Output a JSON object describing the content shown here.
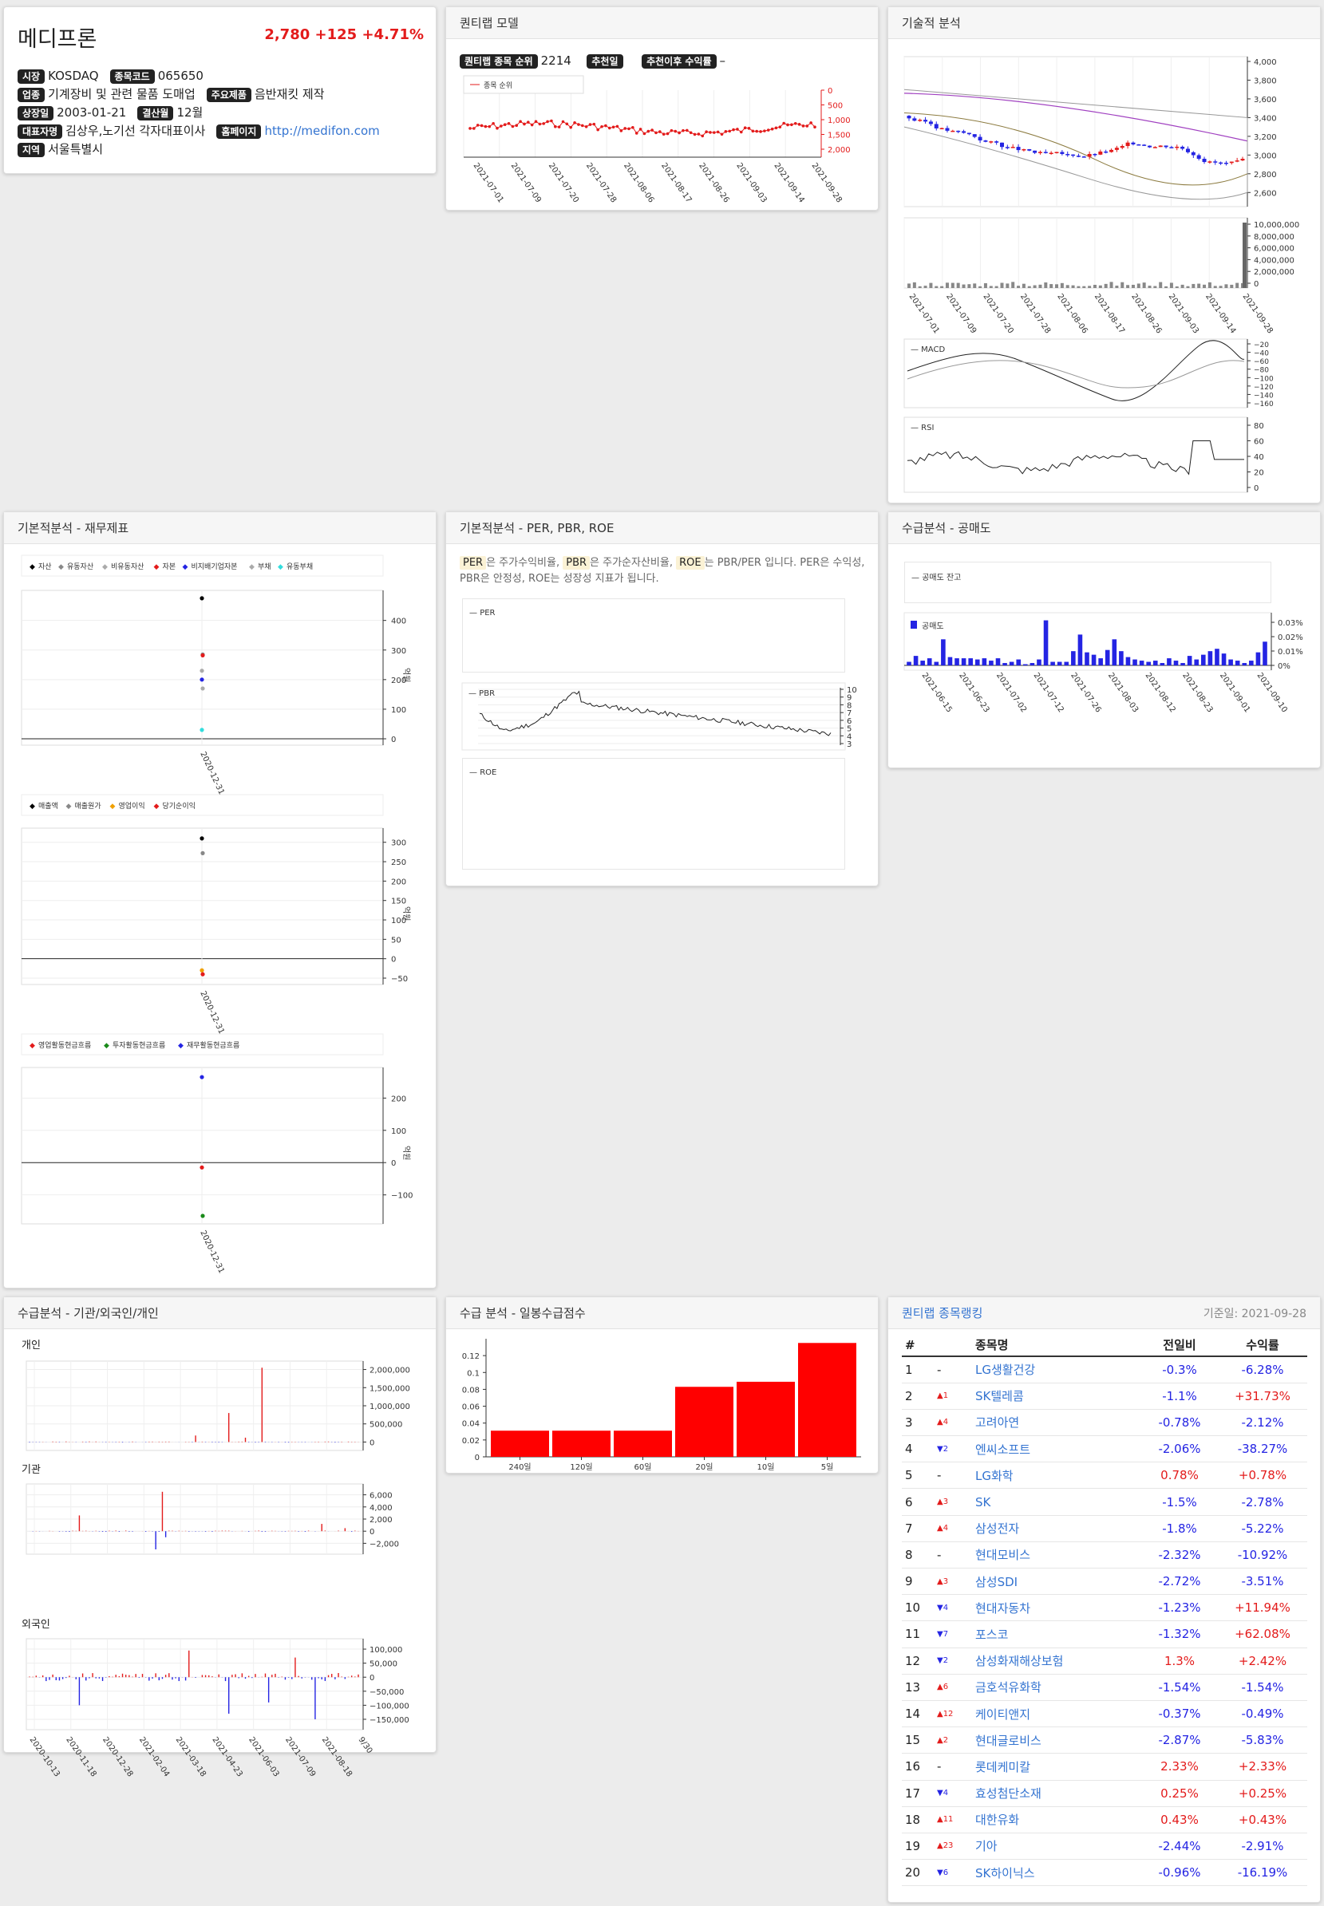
{
  "stock": {
    "name": "메디프론",
    "price": "2,780",
    "change": "+125",
    "pct": "+4.71%",
    "market_label": "시장",
    "market": "KOSDAQ",
    "code_label": "종목코드",
    "code": "065650",
    "industry_label": "업종",
    "industry": "기계장비 및 관련 물품 도매업",
    "product_label": "주요제품",
    "product": "음반재킷 제작",
    "listed_label": "상장일",
    "listed": "2003-01-21",
    "fiscal_label": "결산월",
    "fiscal": "12월",
    "ceo_label": "대표자명",
    "ceo": "김상우,노기선 각자대표이사",
    "homepage_label": "홈페이지",
    "homepage": "http://medifon.com",
    "region_label": "지역",
    "region": "서울특별시"
  },
  "quant": {
    "title": "퀀티랩 모델",
    "rank_label": "퀀티랩 종목 순위",
    "rank": "2214",
    "rec_date_label": "추천일",
    "rec_return_label": "추천이후 수익률",
    "rec_return": "–",
    "legend": "종목 순위",
    "y_ticks": [
      "0",
      "500",
      "1,000",
      "1,500",
      "2,000"
    ],
    "x_ticks": [
      "2021-07-01",
      "2021-07-09",
      "2021-07-20",
      "2021-07-28",
      "2021-08-06",
      "2021-08-17",
      "2021-08-26",
      "2021-09-03",
      "2021-09-14",
      "2021-09-28"
    ]
  },
  "tech": {
    "title": "기술적 분석",
    "price_ticks": [
      "4,000",
      "3,800",
      "3,600",
      "3,400",
      "3,200",
      "3,000",
      "2,800",
      "2,600"
    ],
    "vol_ticks": [
      "10,000,000",
      "8,000,000",
      "6,000,000",
      "4,000,000",
      "2,000,000",
      "0"
    ],
    "x_ticks": [
      "2021-07-01",
      "2021-07-09",
      "2021-07-20",
      "2021-07-28",
      "2021-08-06",
      "2021-08-17",
      "2021-08-26",
      "2021-09-03",
      "2021-09-14",
      "2021-09-28"
    ],
    "macd_label": "MACD",
    "macd_ticks": [
      "−20",
      "−40",
      "−60",
      "−80",
      "−100",
      "−120",
      "−140",
      "−160"
    ],
    "rsi_label": "RSI",
    "rsi_ticks": [
      "80",
      "60",
      "40",
      "20",
      "0"
    ]
  },
  "fund": {
    "title": "기본적분석 - 재무제표",
    "legend1": [
      "자산",
      "유동자산",
      "비유동자산",
      "자본",
      "비지배기업자본",
      "부채",
      "유동부채"
    ],
    "ticks1": [
      "400",
      "300",
      "200",
      "100",
      "0"
    ],
    "legend2": [
      "매출액",
      "매출원가",
      "영업이익",
      "당기순이익"
    ],
    "ticks2": [
      "300",
      "250",
      "200",
      "150",
      "100",
      "50",
      "0",
      "−50"
    ],
    "legend3": [
      "영업활동현금흐름",
      "투자활동현금흐름",
      "재무활동현금흐름"
    ],
    "ticks3": [
      "200",
      "100",
      "0",
      "−100"
    ],
    "unit": "억원",
    "date": "2020-12-31"
  },
  "val": {
    "title": "기본적분석 - PER, PBR, ROE",
    "desc_per": "PER",
    "desc1": "은 주가수익비율,",
    "desc_pbr": "PBR",
    "desc2": "은 주가순자산비율,",
    "desc_roe": "ROE",
    "desc3": "는 PBR/PER 입니다. PER은",
    "desc4": "수익성, PBR은 안정성, ROE는 성장성 지표가 됩니다.",
    "per_label": "PER",
    "pbr_label": "PBR",
    "roe_label": "ROE",
    "pbr_ticks": [
      "10",
      "9",
      "8",
      "7",
      "6",
      "5",
      "4",
      "3"
    ]
  },
  "short": {
    "title": "수급분석 - 공매도",
    "balance_label": "공매도 잔고",
    "short_label": "공매도",
    "ticks": [
      "0.03%",
      "0.02%",
      "0.01%",
      "0%"
    ],
    "x_ticks": [
      "2021-06-15",
      "2021-06-23",
      "2021-07-02",
      "2021-07-12",
      "2021-07-26",
      "2021-08-03",
      "2021-08-12",
      "2021-08-23",
      "2021-09-01",
      "2021-09-10"
    ]
  },
  "flow": {
    "title": "수급분석 - 기관/외국인/개인",
    "indiv": "개인",
    "inst": "기관",
    "foreign": "외국인",
    "indiv_ticks": [
      "2,000,000",
      "1,500,000",
      "1,000,000",
      "500,000",
      "0"
    ],
    "inst_ticks": [
      "6,000",
      "4,000",
      "2,000",
      "0",
      "−2,000"
    ],
    "for_ticks": [
      "100,000",
      "50,000",
      "0",
      "−50,000",
      "−100,000",
      "−150,000"
    ],
    "x_ticks": [
      "2020-10-13",
      "2020-11-18",
      "2020-12-28",
      "2021-02-04",
      "2021-03-18",
      "2021-04-23",
      "2021-06-03",
      "2021-07-09",
      "2021-08-18",
      "9/30"
    ]
  },
  "score": {
    "title": "수급 분석 - 일봉수급점수",
    "y_ticks": [
      "0.12",
      "0.1",
      "0.08",
      "0.06",
      "0.04",
      "0.02",
      "0"
    ]
  },
  "chart_data": {
    "type": "bar",
    "title": "",
    "categories": [
      "240일",
      "120일",
      "60일",
      "20일",
      "10일",
      "5일"
    ],
    "values": [
      0.031,
      0.031,
      0.031,
      0.083,
      0.089,
      0.135
    ],
    "ylim": [
      0,
      0.14
    ],
    "color": "#ff0000"
  },
  "ranking": {
    "title": "퀀티랩 종목랭킹",
    "asof": "기준일: 2021-09-28",
    "cols": [
      "#",
      "종목명",
      "전일비",
      "수익률"
    ],
    "rows": [
      {
        "n": "1",
        "mv": "-",
        "md": "none",
        "name": "LG생활건강",
        "chg": "-0.3%",
        "cd": "dn",
        "ret": "-6.28%",
        "rd": "dn"
      },
      {
        "n": "2",
        "mv": "▲1",
        "md": "up",
        "name": "SK텔레콤",
        "chg": "-1.1%",
        "cd": "dn",
        "ret": "+31.73%",
        "rd": "up"
      },
      {
        "n": "3",
        "mv": "▲4",
        "md": "up",
        "name": "고려아연",
        "chg": "-0.78%",
        "cd": "dn",
        "ret": "-2.12%",
        "rd": "dn"
      },
      {
        "n": "4",
        "mv": "▼2",
        "md": "dn",
        "name": "엔씨소프트",
        "chg": "-2.06%",
        "cd": "dn",
        "ret": "-38.27%",
        "rd": "dn"
      },
      {
        "n": "5",
        "mv": "-",
        "md": "none",
        "name": "LG화학",
        "chg": "0.78%",
        "cd": "up",
        "ret": "+0.78%",
        "rd": "up"
      },
      {
        "n": "6",
        "mv": "▲3",
        "md": "up",
        "name": "SK",
        "chg": "-1.5%",
        "cd": "dn",
        "ret": "-2.78%",
        "rd": "dn"
      },
      {
        "n": "7",
        "mv": "▲4",
        "md": "up",
        "name": "삼성전자",
        "chg": "-1.8%",
        "cd": "dn",
        "ret": "-5.22%",
        "rd": "dn"
      },
      {
        "n": "8",
        "mv": "-",
        "md": "none",
        "name": "현대모비스",
        "chg": "-2.32%",
        "cd": "dn",
        "ret": "-10.92%",
        "rd": "dn"
      },
      {
        "n": "9",
        "mv": "▲3",
        "md": "up",
        "name": "삼성SDI",
        "chg": "-2.72%",
        "cd": "dn",
        "ret": "-3.51%",
        "rd": "dn"
      },
      {
        "n": "10",
        "mv": "▼4",
        "md": "dn",
        "name": "현대자동차",
        "chg": "-1.23%",
        "cd": "dn",
        "ret": "+11.94%",
        "rd": "up"
      },
      {
        "n": "11",
        "mv": "▼7",
        "md": "dn",
        "name": "포스코",
        "chg": "-1.32%",
        "cd": "dn",
        "ret": "+62.08%",
        "rd": "up"
      },
      {
        "n": "12",
        "mv": "▼2",
        "md": "dn",
        "name": "삼성화재해상보험",
        "chg": "1.3%",
        "cd": "up",
        "ret": "+2.42%",
        "rd": "up"
      },
      {
        "n": "13",
        "mv": "▲6",
        "md": "up",
        "name": "금호석유화학",
        "chg": "-1.54%",
        "cd": "dn",
        "ret": "-1.54%",
        "rd": "dn"
      },
      {
        "n": "14",
        "mv": "▲12",
        "md": "up",
        "name": "케이티앤지",
        "chg": "-0.37%",
        "cd": "dn",
        "ret": "-0.49%",
        "rd": "dn"
      },
      {
        "n": "15",
        "mv": "▲2",
        "md": "up",
        "name": "현대글로비스",
        "chg": "-2.87%",
        "cd": "dn",
        "ret": "-5.83%",
        "rd": "dn"
      },
      {
        "n": "16",
        "mv": "-",
        "md": "none",
        "name": "롯데케미칼",
        "chg": "2.33%",
        "cd": "up",
        "ret": "+2.33%",
        "rd": "up"
      },
      {
        "n": "17",
        "mv": "▼4",
        "md": "dn",
        "name": "효성첨단소재",
        "chg": "0.25%",
        "cd": "up",
        "ret": "+0.25%",
        "rd": "up"
      },
      {
        "n": "18",
        "mv": "▲11",
        "md": "up",
        "name": "대한유화",
        "chg": "0.43%",
        "cd": "up",
        "ret": "+0.43%",
        "rd": "up"
      },
      {
        "n": "19",
        "mv": "▲23",
        "md": "up",
        "name": "기아",
        "chg": "-2.44%",
        "cd": "dn",
        "ret": "-2.91%",
        "rd": "dn"
      },
      {
        "n": "20",
        "mv": "▼6",
        "md": "dn",
        "name": "SK하이닉스",
        "chg": "-0.96%",
        "cd": "dn",
        "ret": "-16.19%",
        "rd": "dn"
      }
    ]
  }
}
